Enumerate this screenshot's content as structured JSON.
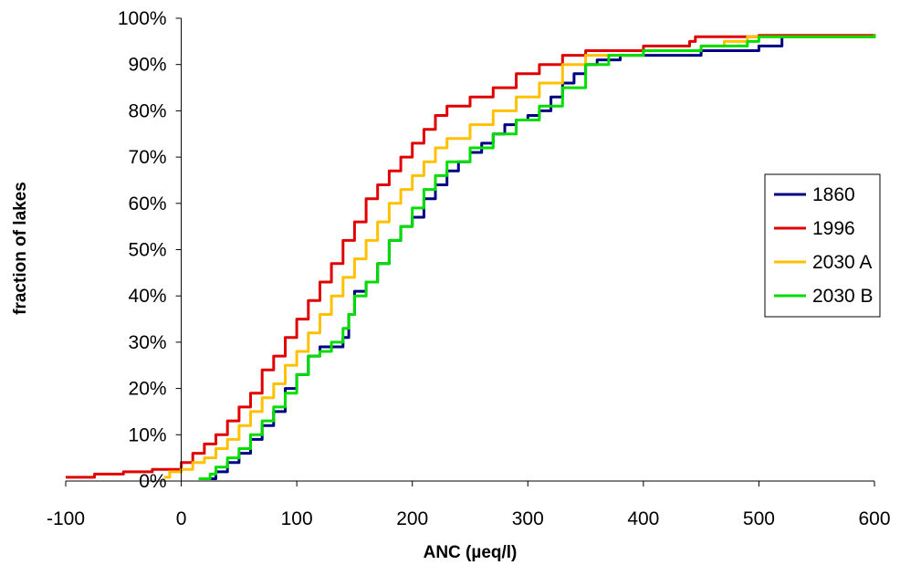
{
  "chart_data": {
    "type": "line",
    "title": "",
    "xlabel": "ANC (µeq/l)",
    "ylabel": "fraction of lakes",
    "xlim": [
      -100,
      600
    ],
    "ylim": [
      0,
      100
    ],
    "x_ticks": [
      {
        "value": -100,
        "label": "-100"
      },
      {
        "value": 0,
        "label": "0"
      },
      {
        "value": 100,
        "label": "100"
      },
      {
        "value": 200,
        "label": "200"
      },
      {
        "value": 300,
        "label": "300"
      },
      {
        "value": 400,
        "label": "400"
      },
      {
        "value": 500,
        "label": "500"
      },
      {
        "value": 600,
        "label": "600"
      }
    ],
    "y_ticks": [
      {
        "value": 0,
        "label": "0%"
      },
      {
        "value": 10,
        "label": "10%"
      },
      {
        "value": 20,
        "label": "20%"
      },
      {
        "value": 30,
        "label": "30%"
      },
      {
        "value": 40,
        "label": "40%"
      },
      {
        "value": 50,
        "label": "50%"
      },
      {
        "value": 60,
        "label": "60%"
      },
      {
        "value": 70,
        "label": "70%"
      },
      {
        "value": 80,
        "label": "80%"
      },
      {
        "value": 90,
        "label": "90%"
      },
      {
        "value": 100,
        "label": "100%"
      }
    ],
    "grid": false,
    "legend_position": "right",
    "series": [
      {
        "name": "1860",
        "color": "#000080",
        "points": [
          [
            20,
            0.5
          ],
          [
            30,
            2
          ],
          [
            40,
            4
          ],
          [
            50,
            6
          ],
          [
            60,
            9
          ],
          [
            70,
            12
          ],
          [
            80,
            15
          ],
          [
            90,
            20
          ],
          [
            100,
            23
          ],
          [
            110,
            27
          ],
          [
            120,
            29
          ],
          [
            130,
            29
          ],
          [
            140,
            31
          ],
          [
            145,
            36
          ],
          [
            150,
            41
          ],
          [
            160,
            43
          ],
          [
            170,
            47
          ],
          [
            180,
            52
          ],
          [
            190,
            55
          ],
          [
            200,
            57
          ],
          [
            210,
            61
          ],
          [
            220,
            64
          ],
          [
            230,
            67
          ],
          [
            240,
            69
          ],
          [
            250,
            71
          ],
          [
            260,
            73
          ],
          [
            270,
            75
          ],
          [
            280,
            77
          ],
          [
            290,
            78
          ],
          [
            300,
            79
          ],
          [
            310,
            80
          ],
          [
            320,
            83
          ],
          [
            330,
            86
          ],
          [
            340,
            88
          ],
          [
            350,
            90
          ],
          [
            360,
            91
          ],
          [
            380,
            92
          ],
          [
            400,
            92
          ],
          [
            450,
            93
          ],
          [
            500,
            94
          ],
          [
            520,
            96
          ],
          [
            600,
            96.5
          ]
        ]
      },
      {
        "name": "1996",
        "color": "#e00000",
        "points": [
          [
            -100,
            0.8
          ],
          [
            -75,
            1.5
          ],
          [
            -50,
            2
          ],
          [
            -25,
            2.5
          ],
          [
            0,
            4
          ],
          [
            10,
            6
          ],
          [
            20,
            8
          ],
          [
            30,
            10
          ],
          [
            40,
            13
          ],
          [
            50,
            16
          ],
          [
            60,
            19
          ],
          [
            70,
            24
          ],
          [
            80,
            27
          ],
          [
            90,
            31
          ],
          [
            100,
            35
          ],
          [
            110,
            39
          ],
          [
            120,
            43
          ],
          [
            130,
            47
          ],
          [
            140,
            52
          ],
          [
            150,
            56
          ],
          [
            160,
            61
          ],
          [
            170,
            64
          ],
          [
            180,
            67
          ],
          [
            190,
            70
          ],
          [
            200,
            73
          ],
          [
            210,
            76
          ],
          [
            220,
            79
          ],
          [
            230,
            81
          ],
          [
            250,
            83
          ],
          [
            270,
            85
          ],
          [
            290,
            88
          ],
          [
            310,
            90
          ],
          [
            330,
            92
          ],
          [
            350,
            93
          ],
          [
            400,
            94
          ],
          [
            440,
            95
          ],
          [
            445,
            96
          ],
          [
            500,
            96.3
          ],
          [
            600,
            96.6
          ]
        ]
      },
      {
        "name": "2030 A",
        "color": "#ffc000",
        "points": [
          [
            -15,
            0.8
          ],
          [
            -10,
            2
          ],
          [
            0,
            2.5
          ],
          [
            10,
            4
          ],
          [
            20,
            5
          ],
          [
            30,
            7
          ],
          [
            40,
            9
          ],
          [
            50,
            12
          ],
          [
            60,
            15
          ],
          [
            70,
            18
          ],
          [
            80,
            21
          ],
          [
            90,
            25
          ],
          [
            100,
            28
          ],
          [
            110,
            32
          ],
          [
            120,
            36
          ],
          [
            130,
            40
          ],
          [
            140,
            44
          ],
          [
            150,
            48
          ],
          [
            160,
            52
          ],
          [
            170,
            56
          ],
          [
            180,
            60
          ],
          [
            190,
            63
          ],
          [
            200,
            66
          ],
          [
            210,
            69
          ],
          [
            220,
            72
          ],
          [
            230,
            74
          ],
          [
            250,
            77
          ],
          [
            270,
            80
          ],
          [
            290,
            83
          ],
          [
            310,
            86
          ],
          [
            330,
            90
          ],
          [
            350,
            92
          ],
          [
            400,
            93
          ],
          [
            450,
            94
          ],
          [
            470,
            95
          ],
          [
            490,
            96
          ],
          [
            600,
            96.5
          ]
        ]
      },
      {
        "name": "2030 B",
        "color": "#00dd00",
        "points": [
          [
            15,
            0.5
          ],
          [
            25,
            1.5
          ],
          [
            30,
            3
          ],
          [
            40,
            5
          ],
          [
            50,
            7
          ],
          [
            60,
            10
          ],
          [
            70,
            13
          ],
          [
            80,
            16
          ],
          [
            90,
            19
          ],
          [
            100,
            23
          ],
          [
            110,
            27
          ],
          [
            120,
            28
          ],
          [
            130,
            30
          ],
          [
            140,
            33
          ],
          [
            145,
            36
          ],
          [
            150,
            40
          ],
          [
            160,
            43
          ],
          [
            170,
            47
          ],
          [
            180,
            52
          ],
          [
            190,
            55
          ],
          [
            200,
            59
          ],
          [
            210,
            63
          ],
          [
            220,
            66
          ],
          [
            230,
            69
          ],
          [
            250,
            72
          ],
          [
            270,
            75
          ],
          [
            290,
            78
          ],
          [
            310,
            81
          ],
          [
            330,
            85
          ],
          [
            350,
            90
          ],
          [
            370,
            92
          ],
          [
            400,
            93
          ],
          [
            450,
            94
          ],
          [
            490,
            95
          ],
          [
            500,
            96
          ],
          [
            600,
            96.5
          ]
        ]
      }
    ]
  }
}
